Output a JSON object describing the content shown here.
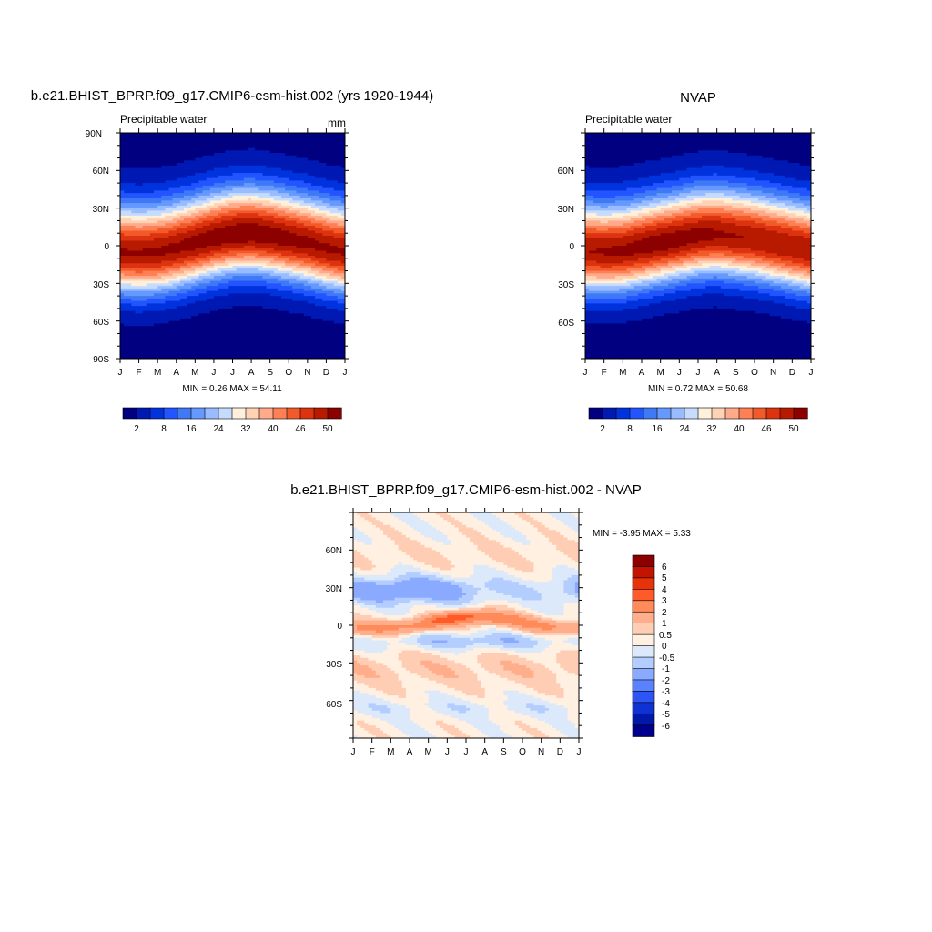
{
  "figure": {
    "left_title": "b.e21.BHIST_BPRP.f09_g17.CMIP6-esm-hist.002 (yrs 1920-1944)",
    "right_title": "NVAP",
    "bottom_title": "b.e21.BHIST_BPRP.f09_g17.CMIP6-esm-hist.002 - NVAP"
  },
  "chart_data": [
    {
      "type": "heatmap",
      "title": "b.e21.BHIST_BPRP.f09_g17.CMIP6-esm-hist.002 (yrs 1920-1944)",
      "left_string": "Precipitable water",
      "units": "mm",
      "x_ticks": [
        "J",
        "F",
        "M",
        "A",
        "M",
        "J",
        "J",
        "A",
        "S",
        "O",
        "N",
        "D",
        "J"
      ],
      "y_ticks": [
        "90N",
        "60N",
        "30N",
        "0",
        "30S",
        "60S",
        "90S"
      ],
      "ylim": [
        -90,
        90
      ],
      "stats_text": "MIN =   0.26 MAX =  54.11",
      "min": 0.26,
      "max": 54.11,
      "colorbar_ticks": [
        "2",
        "8",
        "16",
        "24",
        "32",
        "40",
        "46",
        "50"
      ],
      "itcz_lat_by_month": [
        -5,
        -6,
        -5,
        -2,
        2,
        6,
        9,
        10,
        8,
        5,
        2,
        -2,
        -5
      ]
    },
    {
      "type": "heatmap",
      "title": "NVAP",
      "left_string": "Precipitable water",
      "x_ticks": [
        "J",
        "F",
        "M",
        "A",
        "M",
        "J",
        "J",
        "A",
        "S",
        "O",
        "N",
        "D",
        "J"
      ],
      "y_ticks": [
        "60N",
        "30N",
        "0",
        "30S",
        "60S"
      ],
      "ylim": [
        -90,
        90
      ],
      "stats_text": "MIN =   0.72 MAX =  50.68",
      "min": 0.72,
      "max": 50.68,
      "colorbar_ticks": [
        "2",
        "8",
        "16",
        "24",
        "32",
        "40",
        "46",
        "50"
      ],
      "itcz_lat_by_month": [
        -4,
        -5,
        -4,
        -1,
        2,
        5,
        8,
        9,
        7,
        5,
        2,
        -1,
        -4
      ]
    },
    {
      "type": "heatmap",
      "title": "b.e21.BHIST_BPRP.f09_g17.CMIP6-esm-hist.002 - NVAP",
      "x_ticks": [
        "J",
        "F",
        "M",
        "A",
        "M",
        "J",
        "J",
        "A",
        "S",
        "O",
        "N",
        "D",
        "J"
      ],
      "y_ticks": [
        "60N",
        "30N",
        "0",
        "30S",
        "60S"
      ],
      "ylim": [
        -90,
        90
      ],
      "stats_text": "MIN =  -3.95 MAX =    5.33",
      "min": -3.95,
      "max": 5.33,
      "colorbar_labels": [
        "6",
        "5",
        "4",
        "3",
        "2",
        "1",
        "0.5",
        "0",
        "-0.5",
        "-1",
        "-2",
        "-3",
        "-4",
        "-5",
        "-6"
      ]
    }
  ],
  "colors": {
    "pw_levels": [
      "#000080",
      "#0019b3",
      "#0033dd",
      "#2255ff",
      "#3f79f5",
      "#6699ff",
      "#99bbff",
      "#c6dcff",
      "#fff0dc",
      "#ffd2b4",
      "#ffaa8a",
      "#ff8055",
      "#f25a2a",
      "#dd3311",
      "#b81a00",
      "#8c0000"
    ],
    "diff_levels_top_to_bottom": [
      "#8c0000",
      "#c21400",
      "#e8320a",
      "#ff5a28",
      "#ff8a5a",
      "#ffae8c",
      "#ffcdb4",
      "#fff0e1",
      "#dce9fb",
      "#b4cdff",
      "#8aaaff",
      "#5a82ff",
      "#2d55f5",
      "#0f32d2",
      "#0019aa",
      "#00008c"
    ]
  }
}
